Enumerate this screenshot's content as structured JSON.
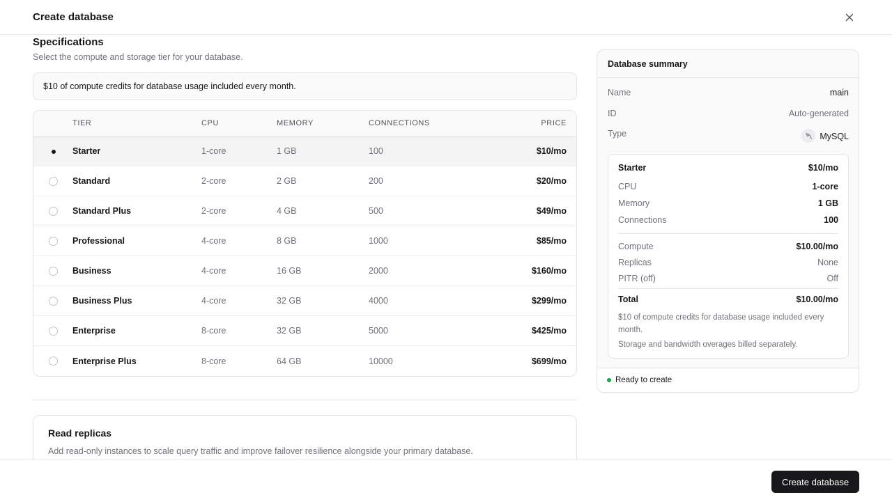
{
  "dialog": {
    "title": "Create database",
    "close_icon": "close-icon"
  },
  "specs": {
    "title": "Specifications",
    "subtitle": "Select the compute and storage tier for your database.",
    "credits_banner": "$10 of compute credits for database usage included every month."
  },
  "table": {
    "headers": {
      "tier": "TIER",
      "cpu": "CPU",
      "memory": "MEMORY",
      "connections": "CONNECTIONS",
      "price": "PRICE"
    },
    "rows": [
      {
        "tier": "Starter",
        "cpu": "1-core",
        "memory": "1 GB",
        "connections": "100",
        "price": "$10/mo",
        "selected": true
      },
      {
        "tier": "Standard",
        "cpu": "2-core",
        "memory": "2 GB",
        "connections": "200",
        "price": "$20/mo",
        "selected": false
      },
      {
        "tier": "Standard Plus",
        "cpu": "2-core",
        "memory": "4 GB",
        "connections": "500",
        "price": "$49/mo",
        "selected": false
      },
      {
        "tier": "Professional",
        "cpu": "4-core",
        "memory": "8 GB",
        "connections": "1000",
        "price": "$85/mo",
        "selected": false
      },
      {
        "tier": "Business",
        "cpu": "4-core",
        "memory": "16 GB",
        "connections": "2000",
        "price": "$160/mo",
        "selected": false
      },
      {
        "tier": "Business Plus",
        "cpu": "4-core",
        "memory": "32 GB",
        "connections": "4000",
        "price": "$299/mo",
        "selected": false
      },
      {
        "tier": "Enterprise",
        "cpu": "8-core",
        "memory": "32 GB",
        "connections": "5000",
        "price": "$425/mo",
        "selected": false
      },
      {
        "tier": "Enterprise Plus",
        "cpu": "8-core",
        "memory": "64 GB",
        "connections": "10000",
        "price": "$699/mo",
        "selected": false
      }
    ]
  },
  "replicas": {
    "title": "Read replicas",
    "description": "Add read-only instances to scale query traffic and improve failover resilience alongside your primary database."
  },
  "summary": {
    "title": "Database summary",
    "name_label": "Name",
    "name_value": "main",
    "id_label": "ID",
    "id_value": "Auto-generated",
    "type_label": "Type",
    "type_value": "MySQL",
    "type_icon": "dolphin-icon",
    "tier": {
      "name": "Starter",
      "price": "$10/mo",
      "cpu_label": "CPU",
      "cpu_value": "1-core",
      "memory_label": "Memory",
      "memory_value": "1 GB",
      "connections_label": "Connections",
      "connections_value": "100",
      "compute_label": "Compute",
      "compute_value": "$10.00/mo",
      "replicas_label": "Replicas",
      "replicas_value": "None",
      "pitr_label": "PITR (off)",
      "pitr_value": "Off",
      "total_label": "Total",
      "total_value": "$10.00/mo",
      "note_credits": "$10 of compute credits for database usage included every month.",
      "note_storage": "Storage and bandwidth overages billed separately."
    },
    "status": "Ready to create",
    "status_color": "#16a34a"
  },
  "footer": {
    "create_label": "Create database"
  }
}
